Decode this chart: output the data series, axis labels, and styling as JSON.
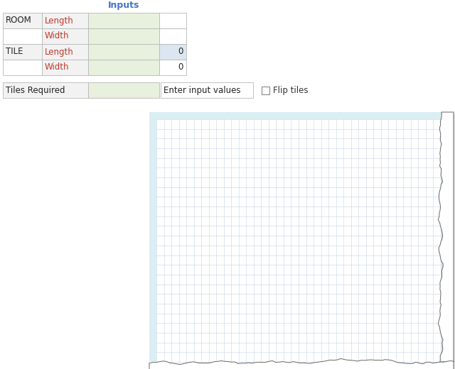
{
  "bg_color": "#ffffff",
  "header_label": "Inputs",
  "header_color": "#4472c4",
  "table": {
    "row_labels_col0": [
      "ROOM",
      "",
      "TILE",
      ""
    ],
    "row_labels_col1": [
      "Length",
      "Width",
      "Length",
      "Width"
    ],
    "row_values_col3": [
      "",
      "",
      "0",
      "0"
    ],
    "col2_color": "#e8f0de",
    "col3_blue_color": "#dce6f1",
    "col3_plain_color": "#ffffff",
    "border_color": "#b8b8b8",
    "text_color_label": "#c0392b",
    "text_color_header": "#4472c4",
    "text_color_row0": "#333333"
  },
  "bottom_row": {
    "col0_text": "Tiles Required",
    "col2_text": "Enter input values",
    "col4_text": "Flip tiles",
    "col2_color": "#e8f0de",
    "border_color": "#b8b8b8"
  },
  "grid": {
    "cell_color": "#ffffff",
    "grid_color": "#c5d5e5",
    "bg_light_blue": "#daeef3",
    "rows": 25,
    "cols": 38
  },
  "torn_edge": true
}
